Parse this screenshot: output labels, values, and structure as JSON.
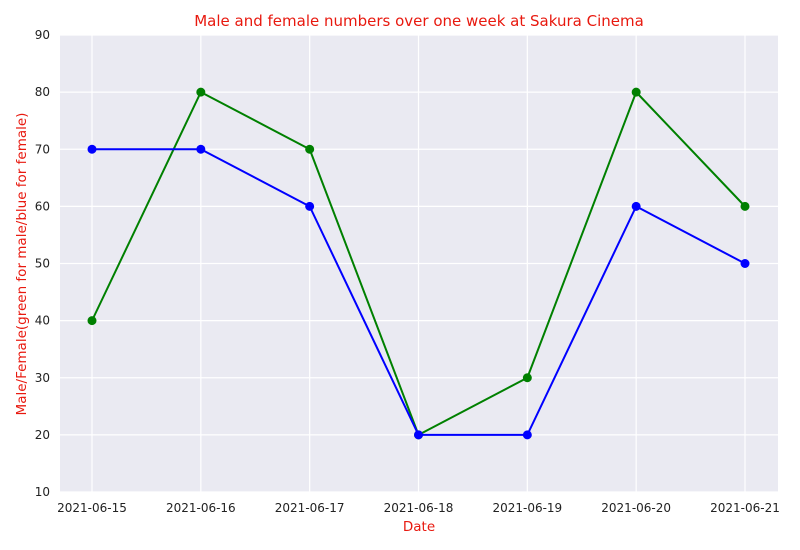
{
  "chart_data": {
    "type": "line",
    "title": "Male and female numbers over one week at Sakura Cinema",
    "xlabel": "Date",
    "ylabel": "Male/Female(green for male/blue for female)",
    "categories": [
      "2021-06-15",
      "2021-06-16",
      "2021-06-17",
      "2021-06-18",
      "2021-06-19",
      "2021-06-20",
      "2021-06-21"
    ],
    "series": [
      {
        "color": "#008000",
        "values": [
          40,
          80,
          70,
          20,
          30,
          80,
          60
        ]
      },
      {
        "color": "#0000ff",
        "values": [
          70,
          70,
          60,
          20,
          20,
          60,
          50
        ]
      }
    ],
    "ylim": [
      10,
      90
    ],
    "yticks": [
      10,
      20,
      30,
      40,
      50,
      60,
      70,
      80,
      90
    ],
    "grid": true,
    "background": "#eaeaf2",
    "grid_color": "#ffffff",
    "label_color": "#e8190f"
  }
}
